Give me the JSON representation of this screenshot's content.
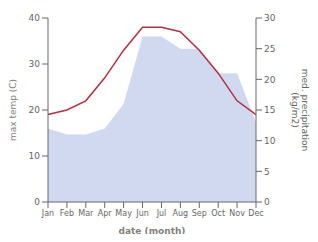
{
  "chart_data": {
    "type": "line",
    "categories": [
      "Jan",
      "Feb",
      "Mar",
      "Apr",
      "May",
      "Jun",
      "Jul",
      "Aug",
      "Sep",
      "Oct",
      "Nov",
      "Dec"
    ],
    "xlabel": "date (month)",
    "ylabel": "max temp (C)",
    "y2label": "med. precipitation\n(kg/m2)",
    "ylim": [
      0,
      40
    ],
    "yticks": [
      0,
      10,
      20,
      30,
      40
    ],
    "y2lim": [
      0,
      30
    ],
    "y2ticks": [
      0,
      5,
      10,
      15,
      20,
      25,
      30
    ],
    "grid": false,
    "series": [
      {
        "type": "area",
        "axis": "y2",
        "color": "#b8c4e8",
        "values": [
          12,
          11,
          11,
          12,
          16,
          27,
          27,
          25,
          25,
          21,
          21,
          13
        ]
      },
      {
        "type": "line",
        "axis": "y",
        "color": "#b03040",
        "values": [
          19,
          20,
          22,
          27,
          33,
          38,
          38,
          37,
          33,
          28,
          22,
          19
        ]
      }
    ]
  }
}
